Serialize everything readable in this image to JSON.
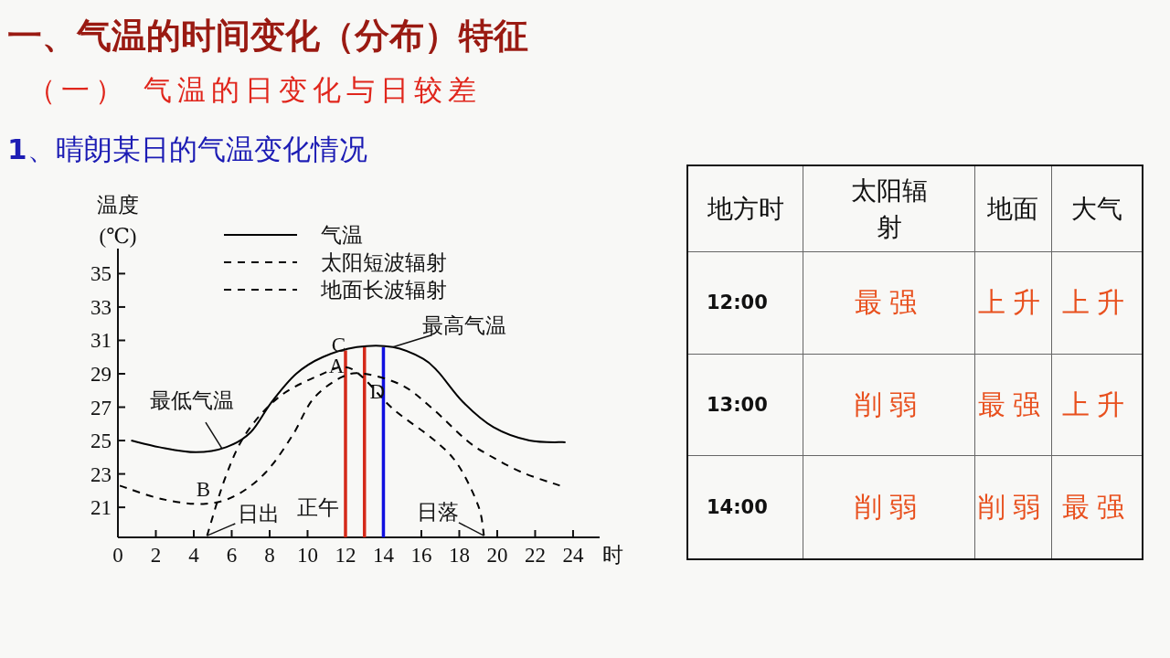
{
  "chart_data": [
    {
      "type": "line",
      "title": "一、气温的时间变化（分布）特征",
      "subtitle": "（一） 气温的日变化与日较差",
      "xlabel": "时",
      "ylabel": "温度 (℃)",
      "xlim": [
        0,
        25.4
      ],
      "xticks": [
        0,
        2,
        4,
        6,
        8,
        10,
        12,
        14,
        16,
        18,
        20,
        22,
        24
      ],
      "ylim": [
        19.2,
        36.5
      ],
      "yticks": [
        21,
        23,
        25,
        27,
        29,
        31,
        33,
        35
      ],
      "legend": "top",
      "series": [
        {
          "name": "气温",
          "color": "#000000",
          "line_style": "solid",
          "x": [
            0.7,
            2.2,
            4.1,
            5.7,
            7.0,
            8.1,
            9.4,
            10.8,
            12.6,
            14.5,
            16.1,
            16.9,
            18.2,
            19.8,
            21.7,
            23.6
          ],
          "values": [
            25.0,
            24.6,
            24.3,
            24.6,
            25.5,
            27.3,
            29.0,
            30.0,
            30.6,
            30.6,
            29.9,
            29.1,
            27.3,
            25.8,
            25.0,
            24.9
          ]
        },
        {
          "name": "太阳短波辐射",
          "color": "#000000",
          "line_style": "dashed",
          "x": [
            4.7,
            5.7,
            6.8,
            8.6,
            11.0,
            12.0,
            12.9,
            14.5,
            16.6,
            17.9,
            19.0,
            19.3
          ],
          "values": [
            19.3,
            22.9,
            25.5,
            27.7,
            29.1,
            29.4,
            28.8,
            26.9,
            25.1,
            23.6,
            21.1,
            19.3
          ]
        },
        {
          "name": "地面长波辐射",
          "color": "#000000",
          "line_style": "dashed",
          "x": [
            0.1,
            2.3,
            4.5,
            6.2,
            7.8,
            9.2,
            10.3,
            11.8,
            13.0,
            15.0,
            16.6,
            18.4,
            19.6,
            21.3,
            23.3
          ],
          "values": [
            22.3,
            21.5,
            21.2,
            21.7,
            23.1,
            25.3,
            27.5,
            28.8,
            29.0,
            28.3,
            26.9,
            25.0,
            24.1,
            23.1,
            22.3
          ]
        }
      ],
      "ref_lines": [
        {
          "axis": "x",
          "value": 12,
          "color": "#d42a1a"
        },
        {
          "axis": "x",
          "value": 13,
          "color": "#d42a1a"
        },
        {
          "axis": "x",
          "value": 14,
          "color": "#1010e0"
        }
      ],
      "annotations": [
        "**1**、晴朗某日的气温变化情况",
        {
          "text": "A",
          "x": 12,
          "y": 29.4
        },
        {
          "text": "B",
          "x": 4.5,
          "y": 21.2
        },
        {
          "text": "C",
          "x": 12.5,
          "y": 30.6
        },
        {
          "text": "D",
          "x": 13,
          "y": 29.0
        },
        {
          "text": "最低气温",
          "x": 5.5,
          "y": 24.5
        },
        {
          "text": "最高气温",
          "x": 14.5,
          "y": 30.6
        },
        {
          "text": "日出",
          "x": 4.7,
          "y": 19.3
        },
        {
          "text": "日落",
          "x": 19.3,
          "y": 19.3
        },
        {
          "text": "正午",
          "x": 12,
          "y": 21
        }
      ]
    },
    {
      "type": "other",
      "categories": [
        "地方时",
        "太阳辐射",
        "地面",
        "大气"
      ],
      "y_categories": [
        "12:00",
        "13:00",
        "14:00"
      ],
      "color": "#e8501e",
      "cell_labels": [
        [
          "最强",
          "上升",
          "上升"
        ],
        [
          "削弱",
          "最强",
          "上升"
        ],
        [
          "削弱",
          "削弱",
          "最强"
        ]
      ]
    }
  ]
}
